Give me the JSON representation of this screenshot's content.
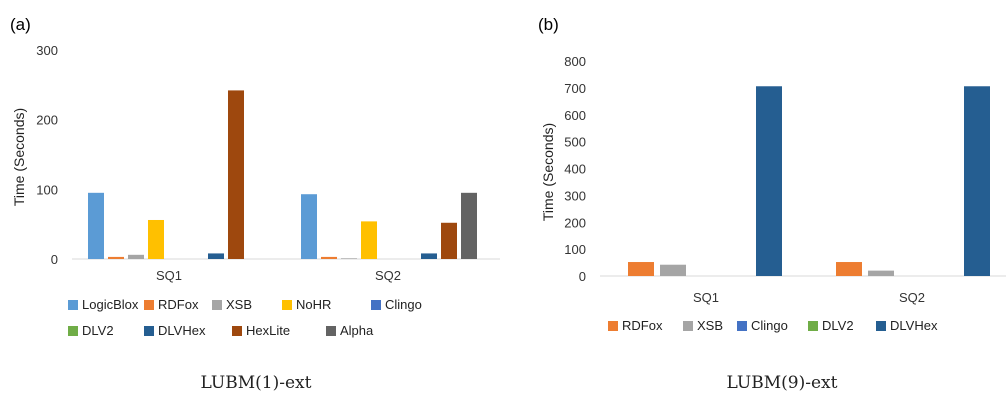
{
  "chart_data": [
    {
      "type": "bar",
      "panel_label": "(a)",
      "caption": "LUBM(1)-ext",
      "ylabel": "Time (Seconds)",
      "xlabel": "",
      "ylim": [
        0,
        300
      ],
      "yticks": [
        0,
        100,
        200,
        300
      ],
      "categories": [
        "SQ1",
        "SQ2"
      ],
      "grid": false,
      "legend_position": "bottom",
      "series": [
        {
          "name": "LogicBlox",
          "color": "#5B9BD5",
          "values": [
            95,
            93
          ]
        },
        {
          "name": "RDFox",
          "color": "#ED7D31",
          "values": [
            3,
            3
          ]
        },
        {
          "name": "XSB",
          "color": "#A5A5A5",
          "values": [
            6,
            1
          ]
        },
        {
          "name": "NoHR",
          "color": "#FFC000",
          "values": [
            56,
            54
          ]
        },
        {
          "name": "Clingo",
          "color": "#4472C4",
          "values": [
            0,
            0
          ]
        },
        {
          "name": "DLV2",
          "color": "#70AD47",
          "values": [
            0,
            0
          ]
        },
        {
          "name": "DLVHex",
          "color": "#255E91",
          "values": [
            8,
            8
          ]
        },
        {
          "name": "HexLite",
          "color": "#9E480E",
          "values": [
            242,
            52
          ]
        },
        {
          "name": "Alpha",
          "color": "#636363",
          "values": [
            0,
            95
          ]
        }
      ]
    },
    {
      "type": "bar",
      "panel_label": "(b)",
      "caption": "LUBM(9)-ext",
      "ylabel": "Time (Seconds)",
      "xlabel": "",
      "ylim": [
        0,
        800
      ],
      "yticks": [
        0,
        100,
        200,
        300,
        400,
        500,
        600,
        700,
        800
      ],
      "categories": [
        "SQ1",
        "SQ2"
      ],
      "grid": false,
      "legend_position": "bottom",
      "series": [
        {
          "name": "RDFox",
          "color": "#ED7D31",
          "values": [
            52,
            52
          ]
        },
        {
          "name": "XSB",
          "color": "#A5A5A5",
          "values": [
            42,
            20
          ]
        },
        {
          "name": "Clingo",
          "color": "#4472C4",
          "values": [
            0,
            0
          ]
        },
        {
          "name": "DLV2",
          "color": "#70AD47",
          "values": [
            0,
            0
          ]
        },
        {
          "name": "DLVHex",
          "color": "#255E91",
          "values": [
            706,
            706
          ]
        }
      ]
    }
  ]
}
